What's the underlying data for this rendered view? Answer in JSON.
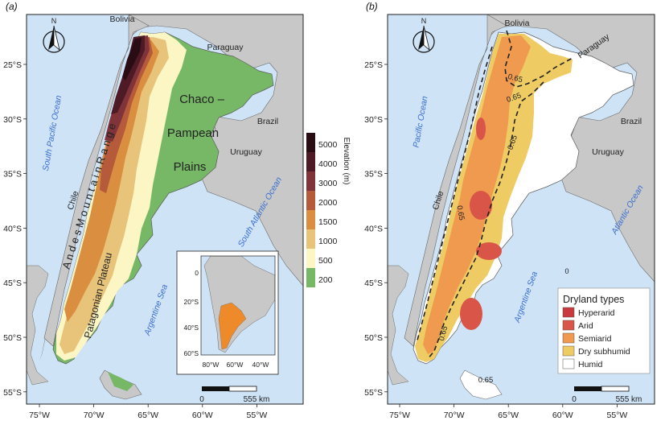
{
  "panels": {
    "a": {
      "label": "(a)",
      "countries": {
        "bolivia": "Bolivia",
        "paraguay": "Paraguay",
        "brazil": "Brazil",
        "uruguay": "Uruguay",
        "chile": "Chile"
      },
      "oceans": {
        "south_pacific": "South Pacific Ocean",
        "south_atlantic": "South Atlantic Ocean",
        "argentine_sea": "Argentine Sea"
      },
      "regions": {
        "chaco_line1": "Chaco –",
        "chaco_line2": "Pampean",
        "chaco_line3": "Plains",
        "andes": "A n d e s   M o u n t a i n   R a n g e",
        "patagonian": "Patagonian Plateau"
      },
      "north": "N",
      "scale": {
        "zero": "0",
        "max": "555 km"
      },
      "legend": {
        "title": "Elevation (m)",
        "classes": [
          {
            "value": "5000",
            "color": "#2a0d14"
          },
          {
            "value": "4000",
            "color": "#4e1a26"
          },
          {
            "value": "3000",
            "color": "#80343a"
          },
          {
            "value": "2000",
            "color": "#b55a3b"
          },
          {
            "value": "1500",
            "color": "#d98f3f"
          },
          {
            "value": "1000",
            "color": "#e8c37a"
          },
          {
            "value": "500",
            "color": "#fbf6c4"
          },
          {
            "value": "200",
            "color": "#76b866"
          }
        ]
      },
      "inset": {
        "x_ticks": [
          "80°W",
          "60°W",
          "40°W"
        ],
        "y_ticks": [
          "0",
          "20°S",
          "40°S",
          "60°S"
        ]
      }
    },
    "b": {
      "label": "(b)",
      "countries": {
        "bolivia": "Bolivia",
        "paraguay": "Paraguay",
        "brazil": "Brazil",
        "uruguay": "Uruguay",
        "chile": "Chile"
      },
      "oceans": {
        "pacific": "Pacific Ocean",
        "atlantic": "Atlantic Ocean",
        "argentine_sea": "Argentine Sea"
      },
      "contour_labels": [
        "0.65",
        "0.65",
        "0.65",
        "0.65",
        "0.65",
        "0.65"
      ],
      "zero_label": "0",
      "north": "N",
      "scale": {
        "zero": "0",
        "max": "555 km"
      },
      "legend": {
        "title": "Dryland types",
        "classes": [
          {
            "name": "Hyperarid",
            "color": "#c93a40"
          },
          {
            "name": "Arid",
            "color": "#d95548"
          },
          {
            "name": "Semiarid",
            "color": "#ef9a4e"
          },
          {
            "name": "Dry subhumid",
            "color": "#eecb63"
          },
          {
            "name": "Humid",
            "color": "#ffffff"
          }
        ]
      }
    }
  },
  "axes": {
    "lat_ticks": [
      "25°S",
      "30°S",
      "35°S",
      "40°S",
      "45°S",
      "50°S",
      "55°S"
    ],
    "lon_ticks": [
      "75°W",
      "70°W",
      "65°W",
      "60°W",
      "55°W"
    ]
  },
  "colors": {
    "ocean": "#cfe3f7",
    "land": "#c8c8c8",
    "border": "#6b6b6b"
  }
}
